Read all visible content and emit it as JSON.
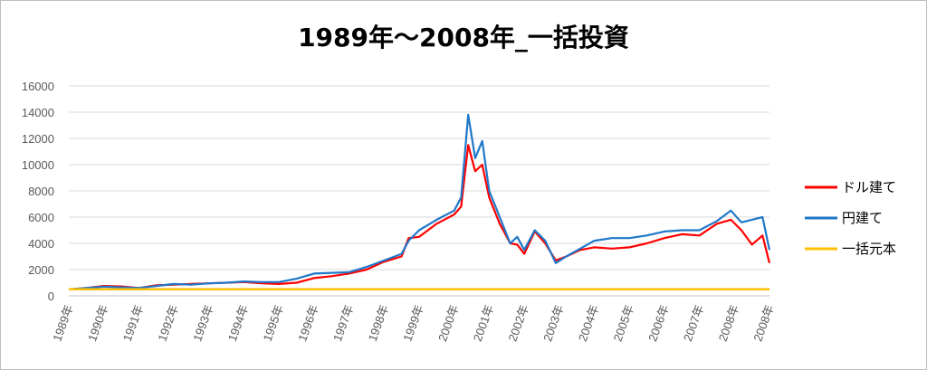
{
  "chart_data": {
    "type": "line",
    "title": "1989年～2008年_一括投資",
    "xlabel": "",
    "ylabel": "",
    "ylim": [
      0,
      16000
    ],
    "yticks": [
      "0",
      "2000",
      "4000",
      "6000",
      "8000",
      "10000",
      "12000",
      "14000",
      "16000"
    ],
    "grid": true,
    "legend_position": "right",
    "categories": [
      "1989年",
      "1990年",
      "1991年",
      "1992年",
      "1993年",
      "1994年",
      "1995年",
      "1996年",
      "1997年",
      "1998年",
      "1999年",
      "2000年",
      "2001年",
      "2002年",
      "2003年",
      "2004年",
      "2005年",
      "2006年",
      "2007年",
      "2008年",
      "2008年"
    ],
    "series": [
      {
        "name": "ドル建て",
        "color": "#ff0000",
        "x": [
          1989.0,
          1989.5,
          1990.0,
          1990.5,
          1991.0,
          1991.5,
          1992.0,
          1992.5,
          1993.0,
          1993.5,
          1994.0,
          1994.5,
          1995.0,
          1995.5,
          1996.0,
          1996.5,
          1997.0,
          1997.5,
          1998.0,
          1998.5,
          1998.7,
          1999.0,
          1999.5,
          2000.0,
          2000.2,
          2000.4,
          2000.6,
          2000.8,
          2001.0,
          2001.3,
          2001.6,
          2001.8,
          2002.0,
          2002.3,
          2002.6,
          2002.9,
          2003.2,
          2003.6,
          2004.0,
          2004.5,
          2005.0,
          2005.5,
          2006.0,
          2006.5,
          2007.0,
          2007.5,
          2007.9,
          2008.2,
          2008.5,
          2008.8,
          2009.0
        ],
        "values": [
          500,
          600,
          750,
          720,
          600,
          800,
          850,
          900,
          950,
          1000,
          1050,
          950,
          900,
          1000,
          1350,
          1500,
          1700,
          2000,
          2600,
          3000,
          4400,
          4500,
          5500,
          6200,
          6800,
          11500,
          9500,
          10000,
          7500,
          5500,
          4000,
          3900,
          3200,
          4900,
          4000,
          2700,
          3000,
          3500,
          3700,
          3600,
          3700,
          4000,
          4400,
          4700,
          4600,
          5500,
          5800,
          5000,
          3900,
          4600,
          2500
        ]
      },
      {
        "name": "円建て",
        "color": "#1f77c8",
        "x": [
          1989.0,
          1989.5,
          1990.0,
          1990.5,
          1991.0,
          1991.5,
          1992.0,
          1992.5,
          1993.0,
          1993.5,
          1994.0,
          1994.5,
          1995.0,
          1995.5,
          1996.0,
          1996.5,
          1997.0,
          1997.5,
          1998.0,
          1998.5,
          1998.7,
          1999.0,
          1999.5,
          2000.0,
          2000.2,
          2000.4,
          2000.6,
          2000.8,
          2001.0,
          2001.3,
          2001.6,
          2001.8,
          2002.0,
          2002.3,
          2002.6,
          2002.9,
          2003.2,
          2003.6,
          2004.0,
          2004.5,
          2005.0,
          2005.5,
          2006.0,
          2006.5,
          2007.0,
          2007.5,
          2007.9,
          2008.2,
          2008.5,
          2008.8,
          2009.0
        ],
        "values": [
          500,
          600,
          700,
          650,
          600,
          750,
          900,
          850,
          950,
          1000,
          1100,
          1050,
          1050,
          1300,
          1700,
          1750,
          1800,
          2200,
          2700,
          3200,
          4200,
          5000,
          5800,
          6500,
          7500,
          13800,
          10500,
          11800,
          8000,
          6000,
          4000,
          4500,
          3500,
          5000,
          4200,
          2500,
          3000,
          3600,
          4200,
          4400,
          4400,
          4600,
          4900,
          5000,
          5000,
          5700,
          6500,
          5600,
          5800,
          6000,
          3500
        ]
      },
      {
        "name": "一括元本",
        "color": "#ffc000",
        "x": [
          1989.0,
          2009.0
        ],
        "values": [
          500,
          500
        ]
      }
    ]
  }
}
